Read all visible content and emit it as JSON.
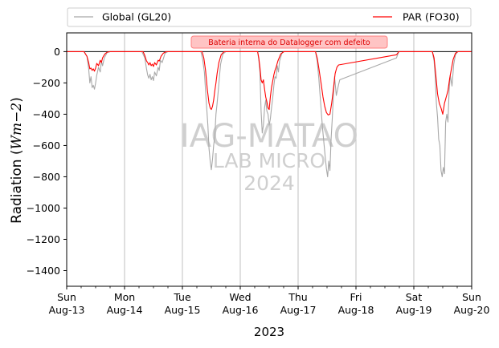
{
  "chart_data": {
    "type": "line",
    "xlabel": "2023",
    "ylabel_main": "Radiation (",
    "ylabel_unit": "Wm−2",
    "ylabel_close": ")",
    "ylim": [
      -1500,
      120
    ],
    "xlim_days": [
      13,
      20
    ],
    "x_ticks": [
      {
        "day": 13,
        "weekday": "Sun",
        "date": "Aug-13"
      },
      {
        "day": 14,
        "weekday": "Mon",
        "date": "Aug-14"
      },
      {
        "day": 15,
        "weekday": "Tue",
        "date": "Aug-15"
      },
      {
        "day": 16,
        "weekday": "Wed",
        "date": "Aug-16"
      },
      {
        "day": 17,
        "weekday": "Thu",
        "date": "Aug-17"
      },
      {
        "day": 18,
        "weekday": "Fri",
        "date": "Aug-18"
      },
      {
        "day": 19,
        "weekday": "Sat",
        "date": "Aug-19"
      },
      {
        "day": 20,
        "weekday": "Sun",
        "date": "Aug-20"
      }
    ],
    "y_ticks": [
      0,
      -200,
      -400,
      -600,
      -800,
      -1000,
      -1200,
      -1400
    ],
    "y_tick_labels": [
      "0",
      "−200",
      "−400",
      "−600",
      "−800",
      "−1000",
      "−1200",
      "−1400"
    ],
    "grid": "vertical at major ticks",
    "legend_position": "above plot",
    "annotation": "Bateria interna do Datalogger com defeito",
    "watermark": [
      "IAG-MATAO",
      "LAB MICRO",
      "2024"
    ],
    "series": [
      {
        "name": "Global (GL20)",
        "color": "#a8a8a8",
        "points": [
          [
            13.0,
            0
          ],
          [
            13.3,
            0
          ],
          [
            13.35,
            -30
          ],
          [
            13.38,
            -110
          ],
          [
            13.4,
            -200
          ],
          [
            13.42,
            -160
          ],
          [
            13.44,
            -230
          ],
          [
            13.46,
            -215
          ],
          [
            13.48,
            -240
          ],
          [
            13.5,
            -200
          ],
          [
            13.52,
            -150
          ],
          [
            13.55,
            -100
          ],
          [
            13.58,
            -130
          ],
          [
            13.6,
            -60
          ],
          [
            13.62,
            -90
          ],
          [
            13.65,
            -40
          ],
          [
            13.7,
            -5
          ],
          [
            13.75,
            0
          ],
          [
            14.0,
            0
          ],
          [
            14.3,
            0
          ],
          [
            14.35,
            -40
          ],
          [
            14.38,
            -110
          ],
          [
            14.4,
            -150
          ],
          [
            14.42,
            -170
          ],
          [
            14.44,
            -145
          ],
          [
            14.46,
            -180
          ],
          [
            14.48,
            -160
          ],
          [
            14.5,
            -185
          ],
          [
            14.52,
            -130
          ],
          [
            14.55,
            -155
          ],
          [
            14.58,
            -100
          ],
          [
            14.6,
            -120
          ],
          [
            14.62,
            -55
          ],
          [
            14.65,
            -70
          ],
          [
            14.7,
            -10
          ],
          [
            14.75,
            0
          ],
          [
            15.0,
            0
          ],
          [
            15.32,
            0
          ],
          [
            15.35,
            -50
          ],
          [
            15.38,
            -130
          ],
          [
            15.4,
            -250
          ],
          [
            15.42,
            -360
          ],
          [
            15.44,
            -470
          ],
          [
            15.46,
            -620
          ],
          [
            15.48,
            -700
          ],
          [
            15.5,
            -755
          ],
          [
            15.52,
            -690
          ],
          [
            15.54,
            -600
          ],
          [
            15.56,
            -540
          ],
          [
            15.58,
            -400
          ],
          [
            15.6,
            -330
          ],
          [
            15.62,
            -250
          ],
          [
            15.64,
            -160
          ],
          [
            15.66,
            -80
          ],
          [
            15.7,
            -15
          ],
          [
            15.75,
            0
          ],
          [
            16.0,
            0
          ],
          [
            16.3,
            0
          ],
          [
            16.32,
            -50
          ],
          [
            16.34,
            -130
          ],
          [
            16.36,
            -380
          ],
          [
            16.38,
            -520
          ],
          [
            16.4,
            -470
          ],
          [
            16.42,
            -360
          ],
          [
            16.44,
            -310
          ],
          [
            16.46,
            -380
          ],
          [
            16.48,
            -400
          ],
          [
            16.5,
            -470
          ],
          [
            16.52,
            -430
          ],
          [
            16.54,
            -360
          ],
          [
            16.56,
            -300
          ],
          [
            16.58,
            -220
          ],
          [
            16.6,
            -160
          ],
          [
            16.62,
            -170
          ],
          [
            16.64,
            -90
          ],
          [
            16.66,
            -130
          ],
          [
            16.68,
            -60
          ],
          [
            16.72,
            -10
          ],
          [
            16.76,
            0
          ],
          [
            17.0,
            0
          ],
          [
            17.3,
            0
          ],
          [
            17.33,
            -60
          ],
          [
            17.36,
            -180
          ],
          [
            17.4,
            -380
          ],
          [
            17.42,
            -480
          ],
          [
            17.45,
            -600
          ],
          [
            17.47,
            -680
          ],
          [
            17.49,
            -750
          ],
          [
            17.51,
            -800
          ],
          [
            17.53,
            -700
          ],
          [
            17.55,
            -760
          ],
          [
            17.57,
            -560
          ],
          [
            17.59,
            -430
          ],
          [
            17.61,
            -280
          ],
          [
            17.63,
            -160
          ],
          [
            17.66,
            -280
          ],
          [
            17.7,
            -210
          ],
          [
            17.72,
            -180
          ],
          [
            18.7,
            -40
          ],
          [
            18.74,
            0
          ],
          [
            19.0,
            0
          ],
          [
            19.32,
            0
          ],
          [
            19.35,
            -60
          ],
          [
            19.37,
            -160
          ],
          [
            19.39,
            -330
          ],
          [
            19.41,
            -420
          ],
          [
            19.43,
            -560
          ],
          [
            19.45,
            -600
          ],
          [
            19.47,
            -760
          ],
          [
            19.49,
            -800
          ],
          [
            19.51,
            -740
          ],
          [
            19.53,
            -780
          ],
          [
            19.55,
            -450
          ],
          [
            19.57,
            -400
          ],
          [
            19.59,
            -450
          ],
          [
            19.61,
            -250
          ],
          [
            19.63,
            -150
          ],
          [
            19.66,
            -220
          ],
          [
            19.69,
            -80
          ],
          [
            19.72,
            -20
          ],
          [
            19.76,
            0
          ],
          [
            20.0,
            0
          ]
        ]
      },
      {
        "name": "PAR (FO30)",
        "color": "#ff0000",
        "points": [
          [
            13.0,
            0
          ],
          [
            13.3,
            0
          ],
          [
            13.35,
            -30
          ],
          [
            13.38,
            -70
          ],
          [
            13.4,
            -110
          ],
          [
            13.42,
            -105
          ],
          [
            13.44,
            -120
          ],
          [
            13.46,
            -110
          ],
          [
            13.48,
            -125
          ],
          [
            13.5,
            -105
          ],
          [
            13.52,
            -75
          ],
          [
            13.55,
            -90
          ],
          [
            13.58,
            -55
          ],
          [
            13.6,
            -70
          ],
          [
            13.62,
            -40
          ],
          [
            13.66,
            -15
          ],
          [
            13.7,
            -3
          ],
          [
            13.75,
            0
          ],
          [
            14.0,
            0
          ],
          [
            14.32,
            0
          ],
          [
            14.35,
            -25
          ],
          [
            14.38,
            -60
          ],
          [
            14.4,
            -70
          ],
          [
            14.42,
            -85
          ],
          [
            14.44,
            -70
          ],
          [
            14.46,
            -90
          ],
          [
            14.48,
            -80
          ],
          [
            14.5,
            -95
          ],
          [
            14.52,
            -70
          ],
          [
            14.55,
            -85
          ],
          [
            14.58,
            -55
          ],
          [
            14.6,
            -60
          ],
          [
            14.63,
            -30
          ],
          [
            14.67,
            -10
          ],
          [
            14.72,
            0
          ],
          [
            15.0,
            0
          ],
          [
            15.34,
            0
          ],
          [
            15.37,
            -40
          ],
          [
            15.4,
            -120
          ],
          [
            15.43,
            -240
          ],
          [
            15.46,
            -330
          ],
          [
            15.48,
            -360
          ],
          [
            15.5,
            -370
          ],
          [
            15.52,
            -350
          ],
          [
            15.54,
            -310
          ],
          [
            15.56,
            -250
          ],
          [
            15.58,
            -200
          ],
          [
            15.6,
            -140
          ],
          [
            15.63,
            -70
          ],
          [
            15.67,
            -20
          ],
          [
            15.72,
            0
          ],
          [
            16.0,
            0
          ],
          [
            16.3,
            0
          ],
          [
            16.32,
            -40
          ],
          [
            16.34,
            -100
          ],
          [
            16.36,
            -180
          ],
          [
            16.38,
            -200
          ],
          [
            16.4,
            -180
          ],
          [
            16.42,
            -240
          ],
          [
            16.44,
            -290
          ],
          [
            16.46,
            -320
          ],
          [
            16.48,
            -360
          ],
          [
            16.5,
            -370
          ],
          [
            16.52,
            -290
          ],
          [
            16.54,
            -230
          ],
          [
            16.56,
            -190
          ],
          [
            16.58,
            -150
          ],
          [
            16.6,
            -120
          ],
          [
            16.62,
            -100
          ],
          [
            16.65,
            -60
          ],
          [
            16.7,
            -15
          ],
          [
            16.75,
            0
          ],
          [
            17.0,
            0
          ],
          [
            17.3,
            0
          ],
          [
            17.33,
            -40
          ],
          [
            17.36,
            -110
          ],
          [
            17.4,
            -210
          ],
          [
            17.43,
            -290
          ],
          [
            17.46,
            -350
          ],
          [
            17.49,
            -390
          ],
          [
            17.52,
            -405
          ],
          [
            17.55,
            -400
          ],
          [
            17.58,
            -330
          ],
          [
            17.61,
            -240
          ],
          [
            17.64,
            -140
          ],
          [
            17.67,
            -100
          ],
          [
            17.7,
            -85
          ],
          [
            18.7,
            -20
          ],
          [
            18.74,
            0
          ],
          [
            19.0,
            0
          ],
          [
            19.32,
            0
          ],
          [
            19.35,
            -40
          ],
          [
            19.38,
            -150
          ],
          [
            19.41,
            -270
          ],
          [
            19.44,
            -330
          ],
          [
            19.47,
            -360
          ],
          [
            19.5,
            -400
          ],
          [
            19.53,
            -330
          ],
          [
            19.56,
            -290
          ],
          [
            19.59,
            -250
          ],
          [
            19.62,
            -170
          ],
          [
            19.65,
            -110
          ],
          [
            19.68,
            -50
          ],
          [
            19.72,
            -10
          ],
          [
            19.76,
            0
          ],
          [
            20.0,
            0
          ]
        ]
      }
    ]
  }
}
